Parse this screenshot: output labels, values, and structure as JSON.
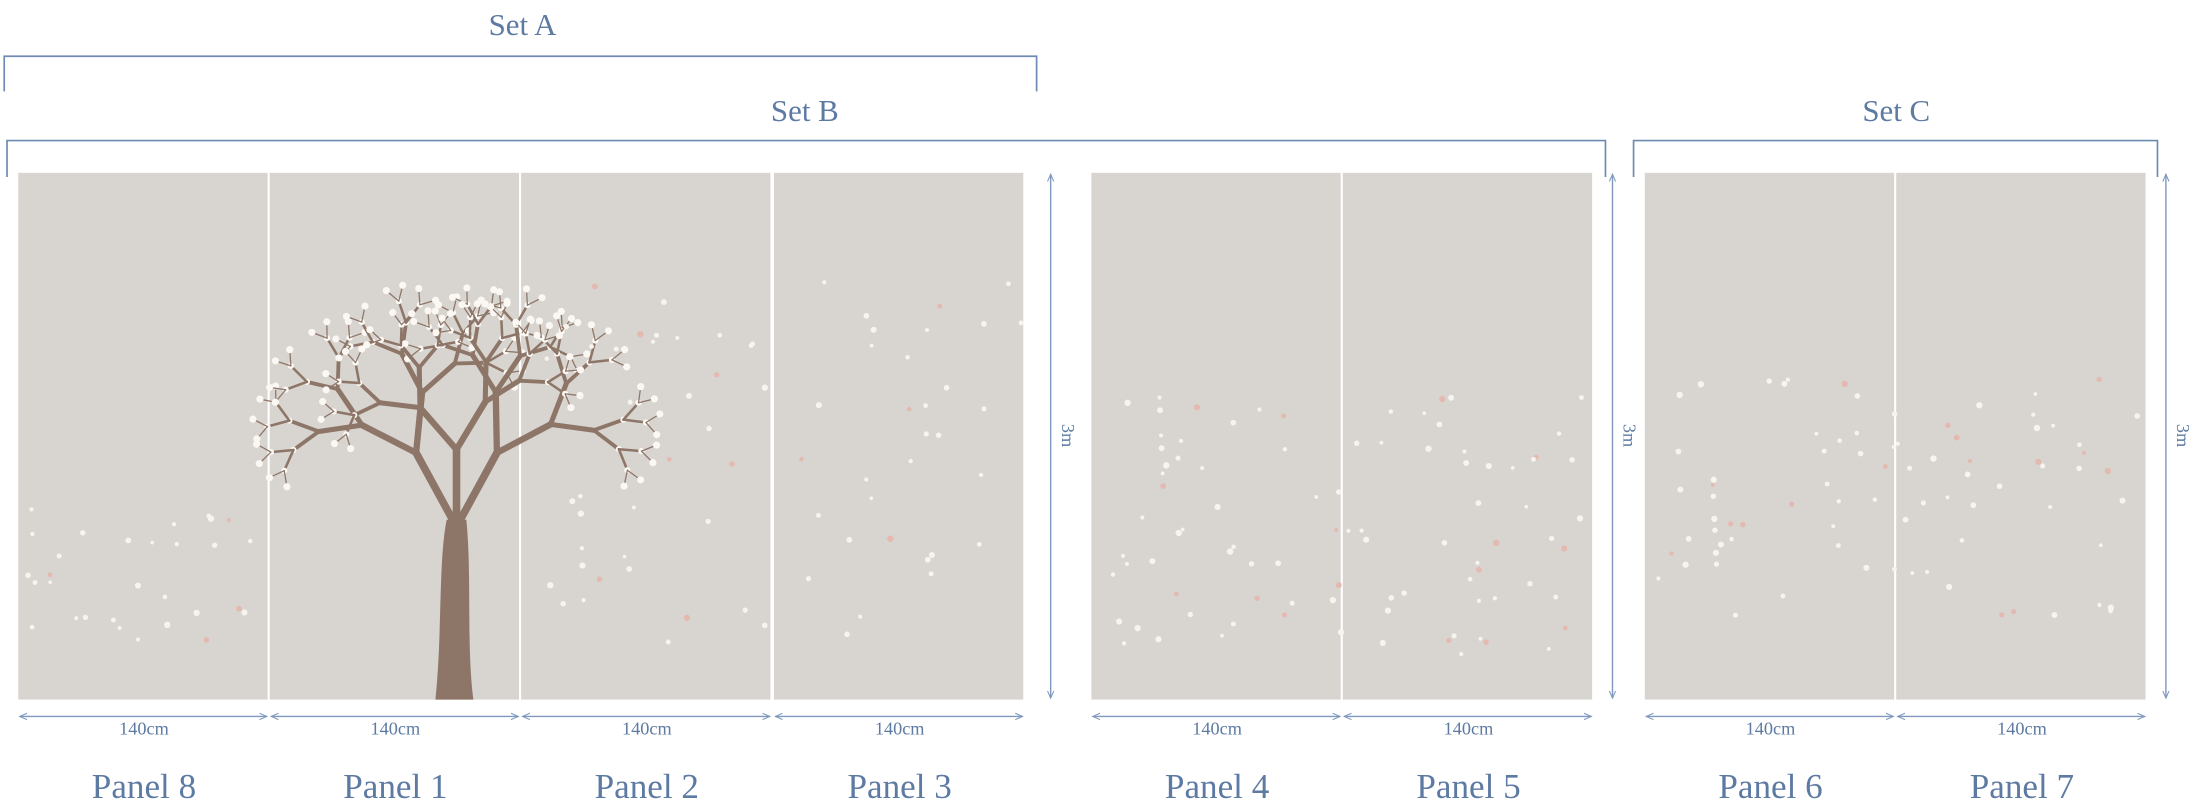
{
  "sets": [
    {
      "label": "Set A"
    },
    {
      "label": "Set B"
    },
    {
      "label": "Set C"
    }
  ],
  "panels": [
    {
      "label": "Panel 8",
      "width": "140cm"
    },
    {
      "label": "Panel 1",
      "width": "140cm"
    },
    {
      "label": "Panel 2",
      "width": "140cm"
    },
    {
      "label": "Panel 3",
      "width": "140cm"
    },
    {
      "label": "Panel 4",
      "width": "140cm"
    },
    {
      "label": "Panel 5",
      "width": "140cm"
    },
    {
      "label": "Panel 6",
      "width": "140cm"
    },
    {
      "label": "Panel 7",
      "width": "140cm"
    }
  ],
  "groups": [
    {
      "height": "3m"
    },
    {
      "height": "3m"
    },
    {
      "height": "3m"
    }
  ]
}
